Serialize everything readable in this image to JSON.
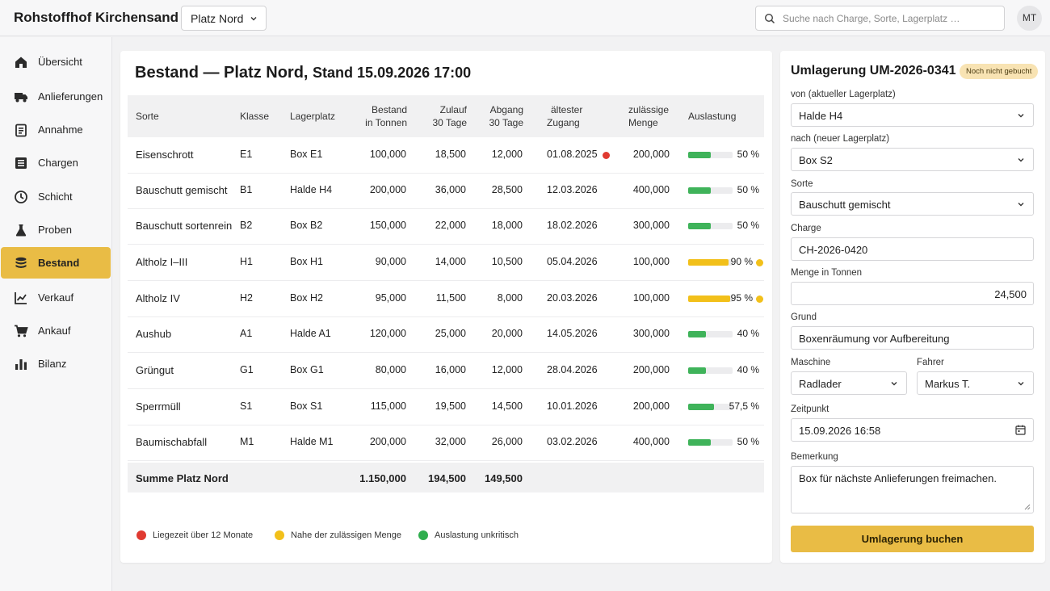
{
  "app": {
    "title": "Rohstoffhof Kirchensand",
    "site": "Platz Nord",
    "user_initials": "MT"
  },
  "search": {
    "placeholder": "Suche nach Charge, Sorte, Lagerplatz …"
  },
  "sidebar": {
    "items": [
      {
        "label": "Übersicht",
        "icon": "home-icon"
      },
      {
        "label": "Anlieferungen",
        "icon": "truck-icon"
      },
      {
        "label": "Annahme",
        "icon": "clipboard-icon"
      },
      {
        "label": "Chargen",
        "icon": "batches-icon"
      },
      {
        "label": "Schicht",
        "icon": "clock-icon"
      },
      {
        "label": "Proben",
        "icon": "flask-icon"
      },
      {
        "label": "Bestand",
        "icon": "stack-icon",
        "active": true
      },
      {
        "label": "Verkauf",
        "icon": "chart-line-icon"
      },
      {
        "label": "Ankauf",
        "icon": "cart-icon"
      },
      {
        "label": "Bilanz",
        "icon": "bar-chart-icon"
      }
    ]
  },
  "inventory": {
    "title": "Bestand — Platz Nord,",
    "stand": "Stand 15.09.2026 17:00",
    "columns": {
      "sorte": "Sorte",
      "klasse": "Klasse",
      "lagerplatz": "Lagerplatz",
      "bestand_1": "Bestand",
      "bestand_2": "in Tonnen",
      "zulauf_1": "Zulauf",
      "zulauf_2": "30 Tage",
      "abgang_1": "Abgang",
      "abgang_2": "30 Tage",
      "zugang_1": "ältester",
      "zugang_2": "Zugang",
      "menge_1": "zulässige",
      "menge_2": "Menge",
      "auslastung": "Auslastung"
    },
    "rows": [
      {
        "sorte": "Eisenschrott",
        "klasse": "E1",
        "lagerplatz": "Box E1",
        "bestand": "100,000",
        "zulauf": "18,500",
        "abgang": "12,000",
        "zugang": "01.08.2025",
        "zugang_flag": "red",
        "menge": "200,000",
        "auslastung": "50 %",
        "auslastung_value": 50,
        "status": "green"
      },
      {
        "sorte": "Bauschutt gemischt",
        "klasse": "B1",
        "lagerplatz": "Halde H4",
        "bestand": "200,000",
        "zulauf": "36,000",
        "abgang": "28,500",
        "zugang": "12.03.2026",
        "menge": "400,000",
        "auslastung": "50 %",
        "auslastung_value": 50,
        "status": "green"
      },
      {
        "sorte": "Bauschutt sortenrein",
        "klasse": "B2",
        "lagerplatz": "Box B2",
        "bestand": "150,000",
        "zulauf": "22,000",
        "abgang": "18,000",
        "zugang": "18.02.2026",
        "menge": "300,000",
        "auslastung": "50 %",
        "auslastung_value": 50,
        "status": "green"
      },
      {
        "sorte": "Altholz I–III",
        "klasse": "H1",
        "lagerplatz": "Box H1",
        "bestand": "90,000",
        "zulauf": "14,000",
        "abgang": "10,500",
        "zugang": "05.04.2026",
        "menge": "100,000",
        "auslastung": "90 %",
        "auslastung_value": 90,
        "status": "yellow",
        "warn": true
      },
      {
        "sorte": "Altholz IV",
        "klasse": "H2",
        "lagerplatz": "Box H2",
        "bestand": "95,000",
        "zulauf": "11,500",
        "abgang": "8,000",
        "zugang": "20.03.2026",
        "menge": "100,000",
        "auslastung": "95 %",
        "auslastung_value": 95,
        "status": "yellow",
        "warn": true
      },
      {
        "sorte": "Aushub",
        "klasse": "A1",
        "lagerplatz": "Halde A1",
        "bestand": "120,000",
        "zulauf": "25,000",
        "abgang": "20,000",
        "zugang": "14.05.2026",
        "menge": "300,000",
        "auslastung": "40 %",
        "auslastung_value": 40,
        "status": "green"
      },
      {
        "sorte": "Grüngut",
        "klasse": "G1",
        "lagerplatz": "Box G1",
        "bestand": "80,000",
        "zulauf": "16,000",
        "abgang": "12,000",
        "zugang": "28.04.2026",
        "menge": "200,000",
        "auslastung": "40 %",
        "auslastung_value": 40,
        "status": "green"
      },
      {
        "sorte": "Sperrmüll",
        "klasse": "S1",
        "lagerplatz": "Box S1",
        "bestand": "115,000",
        "zulauf": "19,500",
        "abgang": "14,500",
        "zugang": "10.01.2026",
        "menge": "200,000",
        "auslastung": "57,5 %",
        "auslastung_value": 57.5,
        "status": "green"
      },
      {
        "sorte": "Baumischabfall",
        "klasse": "M1",
        "lagerplatz": "Halde M1",
        "bestand": "200,000",
        "zulauf": "32,000",
        "abgang": "26,000",
        "zugang": "03.02.2026",
        "menge": "400,000",
        "auslastung": "50 %",
        "auslastung_value": 50,
        "status": "green"
      }
    ],
    "sum": {
      "label": "Summe Platz Nord",
      "bestand": "1.150,000",
      "zulauf": "194,500",
      "abgang": "149,500"
    },
    "legend": [
      {
        "label": "Liegezeit über 12 Monate",
        "color": "#e03a31"
      },
      {
        "label": "Nahe der zulässigen Menge",
        "color": "#f2c01a"
      },
      {
        "label": "Auslastung unkritisch",
        "color": "#2fae4e"
      }
    ],
    "colors": {
      "green": "#3fb35a",
      "yellow": "#f2c01a",
      "red": "#e03a31"
    }
  },
  "transfer": {
    "title": "Umlagerung UM-2026-0341",
    "badge": "Noch nicht gebucht",
    "from_label": "von (aktueller Lagerplatz)",
    "from_value": "Halde H4",
    "to_label": "nach (neuer Lagerplatz)",
    "to_value": "Box S2",
    "sorte_label": "Sorte",
    "sorte_value": "Bauschutt gemischt",
    "charge_label": "Charge",
    "charge_value": "CH-2026-0420",
    "menge_label": "Menge in Tonnen",
    "menge_value": "24,500",
    "grund_label": "Grund",
    "grund_value": "Boxenräumung vor Aufbereitung",
    "maschine_label": "Maschine",
    "maschine_value": "Radlader",
    "fahrer_label": "Fahrer",
    "fahrer_value": "Markus T.",
    "zeitpunkt_label": "Zeitpunkt",
    "zeitpunkt_value": "15.09.2026 16:58",
    "bemerkung_label": "Bemerkung",
    "bemerkung_value": "Box für nächste Anlieferungen freimachen.",
    "submit_label": "Umlagerung buchen"
  }
}
